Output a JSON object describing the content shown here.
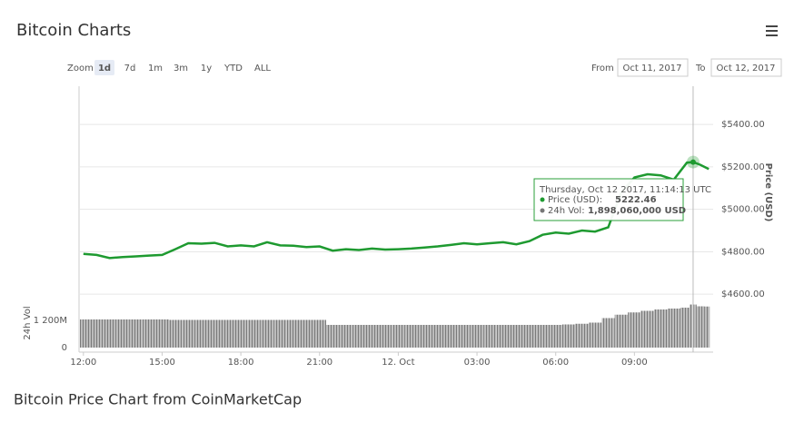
{
  "header": {
    "title": "Bitcoin Charts"
  },
  "zoom": {
    "label": "Zoom",
    "buttons": [
      "1d",
      "7d",
      "1m",
      "3m",
      "1y",
      "YTD",
      "ALL"
    ]
  },
  "range": {
    "from_label": "From",
    "from": "Oct 11, 2017",
    "to_label": "To",
    "to": "Oct 12, 2017"
  },
  "tooltip": {
    "date": "Thursday, Oct 12 2017, 11:14:13 UTC",
    "price_label": "Price (USD):",
    "price": "5222.46",
    "vol_label": "24h Vol:",
    "vol": "1,898,060,000 USD"
  },
  "caption": "Bitcoin Price Chart from CoinMarketCap",
  "chart_data": [
    {
      "type": "line",
      "y_label": "Price (USD)",
      "color": "#1e9a30",
      "x": [
        "2017-10-11T12:00",
        "2017-10-11T12:30",
        "2017-10-11T13:00",
        "2017-10-11T13:30",
        "2017-10-11T14:00",
        "2017-10-11T14:30",
        "2017-10-11T15:00",
        "2017-10-11T15:30",
        "2017-10-11T16:00",
        "2017-10-11T16:30",
        "2017-10-11T17:00",
        "2017-10-11T17:30",
        "2017-10-11T18:00",
        "2017-10-11T18:30",
        "2017-10-11T19:00",
        "2017-10-11T19:30",
        "2017-10-11T20:00",
        "2017-10-11T20:30",
        "2017-10-11T21:00",
        "2017-10-11T21:30",
        "2017-10-11T22:00",
        "2017-10-11T22:30",
        "2017-10-11T23:00",
        "2017-10-11T23:30",
        "2017-10-12T00:00",
        "2017-10-12T00:30",
        "2017-10-12T01:00",
        "2017-10-12T01:30",
        "2017-10-12T02:00",
        "2017-10-12T02:30",
        "2017-10-12T03:00",
        "2017-10-12T03:30",
        "2017-10-12T04:00",
        "2017-10-12T04:30",
        "2017-10-12T05:00",
        "2017-10-12T05:30",
        "2017-10-12T06:00",
        "2017-10-12T06:30",
        "2017-10-12T07:00",
        "2017-10-12T07:30",
        "2017-10-12T08:00",
        "2017-10-12T08:30",
        "2017-10-12T09:00",
        "2017-10-12T09:30",
        "2017-10-12T10:00",
        "2017-10-12T10:30",
        "2017-10-12T11:00",
        "2017-10-12T11:14:13",
        "2017-10-12T11:30",
        "2017-10-12T11:50"
      ],
      "values": [
        4790,
        4785,
        4770,
        4775,
        4778,
        4782,
        4785,
        4812,
        4840,
        4838,
        4842,
        4825,
        4830,
        4825,
        4845,
        4830,
        4828,
        4822,
        4825,
        4805,
        4812,
        4808,
        4815,
        4810,
        4812,
        4815,
        4820,
        4825,
        4832,
        4840,
        4835,
        4840,
        4845,
        4835,
        4850,
        4880,
        4890,
        4885,
        4900,
        4895,
        4915,
        5080,
        5150,
        5165,
        5160,
        5140,
        5220,
        5222.46,
        5210,
        5190
      ],
      "xlim": [
        "2017-10-11T11:50",
        "2017-10-12T12:00"
      ],
      "xticks": [
        {
          "value": "2017-10-11T12:00",
          "label": "12:00"
        },
        {
          "value": "2017-10-11T15:00",
          "label": "15:00"
        },
        {
          "value": "2017-10-11T18:00",
          "label": "18:00"
        },
        {
          "value": "2017-10-11T21:00",
          "label": "21:00"
        },
        {
          "value": "2017-10-12T00:00",
          "label": "12. Oct"
        },
        {
          "value": "2017-10-12T03:00",
          "label": "03:00"
        },
        {
          "value": "2017-10-12T06:00",
          "label": "06:00"
        },
        {
          "value": "2017-10-12T09:00",
          "label": "09:00"
        }
      ],
      "ylim": [
        4575,
        5580
      ],
      "yticks": [
        {
          "value": 4600,
          "label": "$4600.00"
        },
        {
          "value": 4800,
          "label": "$4800.00"
        },
        {
          "value": 5000,
          "label": "$5000.00"
        },
        {
          "value": 5200,
          "label": "$5200.00"
        },
        {
          "value": 5400,
          "label": "$5400.00"
        }
      ],
      "grid": true
    },
    {
      "type": "bar",
      "y_label": "24h Vol",
      "color": "#7a7a7a",
      "x": [
        "2017-10-11T12:00",
        "2017-10-11T12:30",
        "2017-10-11T13:00",
        "2017-10-11T13:30",
        "2017-10-11T14:00",
        "2017-10-11T14:30",
        "2017-10-11T15:00",
        "2017-10-11T15:30",
        "2017-10-11T16:00",
        "2017-10-11T16:30",
        "2017-10-11T17:00",
        "2017-10-11T17:30",
        "2017-10-11T18:00",
        "2017-10-11T18:30",
        "2017-10-11T19:00",
        "2017-10-11T19:30",
        "2017-10-11T20:00",
        "2017-10-11T20:30",
        "2017-10-11T21:00",
        "2017-10-11T21:30",
        "2017-10-11T22:00",
        "2017-10-11T22:30",
        "2017-10-11T23:00",
        "2017-10-11T23:30",
        "2017-10-12T00:00",
        "2017-10-12T00:30",
        "2017-10-12T01:00",
        "2017-10-12T01:30",
        "2017-10-12T02:00",
        "2017-10-12T02:30",
        "2017-10-12T03:00",
        "2017-10-12T03:30",
        "2017-10-12T04:00",
        "2017-10-12T04:30",
        "2017-10-12T05:00",
        "2017-10-12T05:30",
        "2017-10-12T06:00",
        "2017-10-12T06:30",
        "2017-10-12T07:00",
        "2017-10-12T07:30",
        "2017-10-12T08:00",
        "2017-10-12T08:30",
        "2017-10-12T09:00",
        "2017-10-12T09:30",
        "2017-10-12T10:00",
        "2017-10-12T10:30",
        "2017-10-12T11:00",
        "2017-10-12T11:14:13",
        "2017-10-12T11:30",
        "2017-10-12T11:50"
      ],
      "values": [
        1240000000,
        1240000000,
        1240000000,
        1240000000,
        1240000000,
        1240000000,
        1240000000,
        1220000000,
        1220000000,
        1220000000,
        1220000000,
        1220000000,
        1220000000,
        1220000000,
        1220000000,
        1220000000,
        1220000000,
        1220000000,
        1220000000,
        1000000000,
        1000000000,
        1000000000,
        1000000000,
        1000000000,
        1000000000,
        1000000000,
        1000000000,
        1000000000,
        1000000000,
        1000000000,
        1000000000,
        1000000000,
        1000000000,
        1000000000,
        1000000000,
        1000000000,
        1000000000,
        1020000000,
        1050000000,
        1100000000,
        1300000000,
        1450000000,
        1550000000,
        1620000000,
        1680000000,
        1720000000,
        1760000000,
        1898060000,
        1820000000,
        1810000000
      ],
      "xlim": [
        "2017-10-11T11:50",
        "2017-10-12T12:00"
      ],
      "ylim": [
        0,
        2120000000
      ],
      "yticks": [
        0,
        {
          "value": 1200000000,
          "label": "1 200M"
        }
      ]
    }
  ]
}
